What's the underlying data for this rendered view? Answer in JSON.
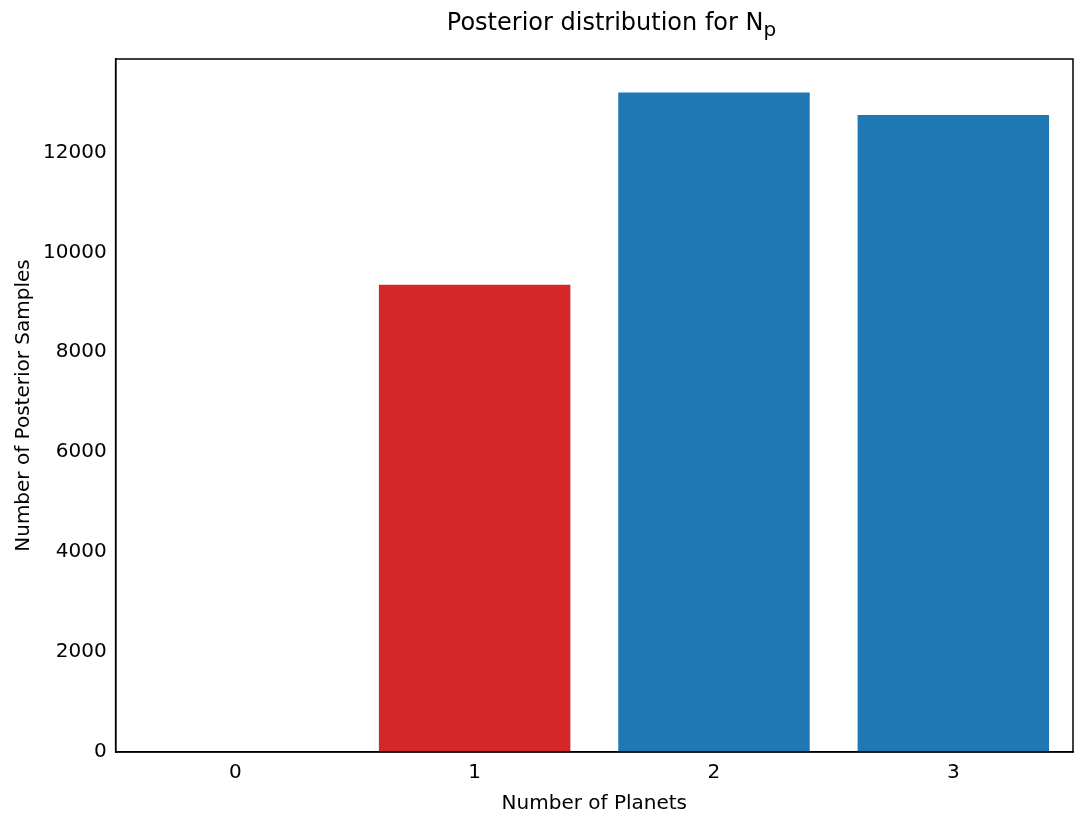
{
  "chart_data": {
    "type": "bar",
    "title": "Posterior distribution for N$_{p}$",
    "xlabel": "Number of Planets",
    "ylabel": "Number of Posterior Samples",
    "categories": [
      "0",
      "1",
      "2",
      "3"
    ],
    "values": [
      0,
      9350,
      13200,
      12750
    ],
    "colors": [
      "#1f77b4",
      "#d62728",
      "#1f77b4",
      "#1f77b4"
    ],
    "ylim": [
      0,
      13870
    ],
    "yticks": [
      0,
      2000,
      4000,
      6000,
      8000,
      10000,
      12000
    ],
    "grid": false,
    "legend": false
  }
}
